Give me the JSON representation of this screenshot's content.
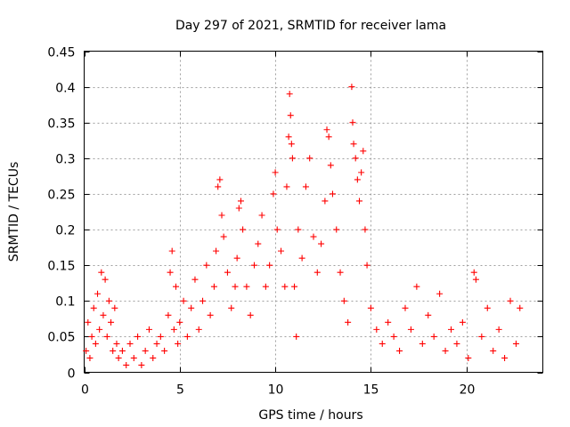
{
  "chart_data": {
    "type": "scatter",
    "title": "Day 297 of 2021, SRMTID for receiver lama",
    "xlabel": "GPS time / hours",
    "ylabel": "SRMTID / TECUs",
    "xlim": [
      0,
      24
    ],
    "ylim": [
      0,
      0.45
    ],
    "xticks": [
      0,
      5,
      10,
      15,
      20
    ],
    "xtick_labels": [
      "0",
      "5",
      "10",
      "15",
      "20"
    ],
    "yticks": [
      0,
      0.05,
      0.1,
      0.15,
      0.2,
      0.25,
      0.3,
      0.35,
      0.4,
      0.45
    ],
    "ytick_labels": [
      "0",
      "0.05",
      "0.1",
      "0.15",
      "0.2",
      "0.25",
      "0.3",
      "0.35",
      "0.4",
      "0.45"
    ],
    "grid": true,
    "marker": "+",
    "color": "#ff0000",
    "series": [
      {
        "name": "SRMTID",
        "points": [
          [
            0.1,
            0.03
          ],
          [
            0.2,
            0.07
          ],
          [
            0.3,
            0.02
          ],
          [
            0.4,
            0.05
          ],
          [
            0.5,
            0.09
          ],
          [
            0.6,
            0.04
          ],
          [
            0.7,
            0.11
          ],
          [
            0.8,
            0.06
          ],
          [
            0.9,
            0.14
          ],
          [
            1.0,
            0.08
          ],
          [
            1.1,
            0.13
          ],
          [
            1.2,
            0.05
          ],
          [
            1.3,
            0.1
          ],
          [
            1.4,
            0.07
          ],
          [
            1.5,
            0.03
          ],
          [
            1.6,
            0.09
          ],
          [
            1.7,
            0.04
          ],
          [
            1.8,
            0.02
          ],
          [
            2.0,
            0.03
          ],
          [
            2.2,
            0.01
          ],
          [
            2.4,
            0.04
          ],
          [
            2.6,
            0.02
          ],
          [
            2.8,
            0.05
          ],
          [
            3.0,
            0.01
          ],
          [
            3.2,
            0.03
          ],
          [
            3.4,
            0.06
          ],
          [
            3.6,
            0.02
          ],
          [
            3.8,
            0.04
          ],
          [
            4.0,
            0.05
          ],
          [
            4.2,
            0.03
          ],
          [
            4.4,
            0.08
          ],
          [
            4.5,
            0.14
          ],
          [
            4.6,
            0.17
          ],
          [
            4.7,
            0.06
          ],
          [
            4.8,
            0.12
          ],
          [
            4.9,
            0.04
          ],
          [
            5.0,
            0.07
          ],
          [
            5.2,
            0.1
          ],
          [
            5.4,
            0.05
          ],
          [
            5.6,
            0.09
          ],
          [
            5.8,
            0.13
          ],
          [
            6.0,
            0.06
          ],
          [
            6.2,
            0.1
          ],
          [
            6.4,
            0.15
          ],
          [
            6.6,
            0.08
          ],
          [
            6.8,
            0.12
          ],
          [
            6.9,
            0.17
          ],
          [
            7.0,
            0.26
          ],
          [
            7.1,
            0.27
          ],
          [
            7.2,
            0.22
          ],
          [
            7.3,
            0.19
          ],
          [
            7.5,
            0.14
          ],
          [
            7.7,
            0.09
          ],
          [
            7.9,
            0.12
          ],
          [
            8.0,
            0.16
          ],
          [
            8.1,
            0.23
          ],
          [
            8.2,
            0.24
          ],
          [
            8.3,
            0.2
          ],
          [
            8.5,
            0.12
          ],
          [
            8.7,
            0.08
          ],
          [
            8.9,
            0.15
          ],
          [
            9.1,
            0.18
          ],
          [
            9.3,
            0.22
          ],
          [
            9.5,
            0.12
          ],
          [
            9.7,
            0.15
          ],
          [
            9.9,
            0.25
          ],
          [
            10.0,
            0.28
          ],
          [
            10.1,
            0.2
          ],
          [
            10.3,
            0.17
          ],
          [
            10.5,
            0.12
          ],
          [
            10.6,
            0.26
          ],
          [
            10.7,
            0.33
          ],
          [
            10.75,
            0.39
          ],
          [
            10.8,
            0.36
          ],
          [
            10.85,
            0.32
          ],
          [
            10.9,
            0.3
          ],
          [
            11.0,
            0.12
          ],
          [
            11.1,
            0.05
          ],
          [
            11.2,
            0.2
          ],
          [
            11.4,
            0.16
          ],
          [
            11.6,
            0.26
          ],
          [
            11.8,
            0.3
          ],
          [
            12.0,
            0.19
          ],
          [
            12.2,
            0.14
          ],
          [
            12.4,
            0.18
          ],
          [
            12.6,
            0.24
          ],
          [
            12.7,
            0.34
          ],
          [
            12.8,
            0.33
          ],
          [
            12.9,
            0.29
          ],
          [
            13.0,
            0.25
          ],
          [
            13.2,
            0.2
          ],
          [
            13.4,
            0.14
          ],
          [
            13.6,
            0.1
          ],
          [
            13.8,
            0.07
          ],
          [
            14.0,
            0.4
          ],
          [
            14.05,
            0.35
          ],
          [
            14.1,
            0.32
          ],
          [
            14.2,
            0.3
          ],
          [
            14.3,
            0.27
          ],
          [
            14.4,
            0.24
          ],
          [
            14.5,
            0.28
          ],
          [
            14.6,
            0.31
          ],
          [
            14.7,
            0.2
          ],
          [
            14.8,
            0.15
          ],
          [
            15.0,
            0.09
          ],
          [
            15.3,
            0.06
          ],
          [
            15.6,
            0.04
          ],
          [
            15.9,
            0.07
          ],
          [
            16.2,
            0.05
          ],
          [
            16.5,
            0.03
          ],
          [
            16.8,
            0.09
          ],
          [
            17.1,
            0.06
          ],
          [
            17.4,
            0.12
          ],
          [
            17.7,
            0.04
          ],
          [
            18.0,
            0.08
          ],
          [
            18.3,
            0.05
          ],
          [
            18.6,
            0.11
          ],
          [
            18.9,
            0.03
          ],
          [
            19.2,
            0.06
          ],
          [
            19.5,
            0.04
          ],
          [
            19.8,
            0.07
          ],
          [
            20.1,
            0.02
          ],
          [
            20.4,
            0.14
          ],
          [
            20.5,
            0.13
          ],
          [
            20.8,
            0.05
          ],
          [
            21.1,
            0.09
          ],
          [
            21.4,
            0.03
          ],
          [
            21.7,
            0.06
          ],
          [
            22.0,
            0.02
          ],
          [
            22.3,
            0.1
          ],
          [
            22.6,
            0.04
          ],
          [
            22.8,
            0.09
          ]
        ]
      }
    ]
  }
}
